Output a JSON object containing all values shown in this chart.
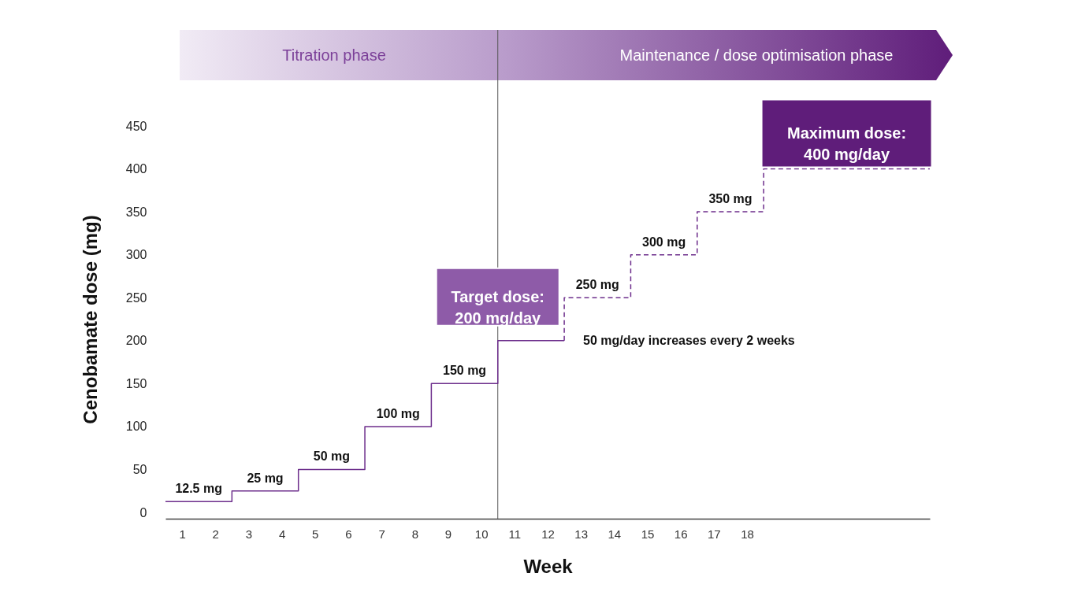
{
  "chart_data": {
    "type": "step",
    "xlabel": "Week",
    "ylabel": "Cenobamate dose (mg)",
    "xlim": [
      0.5,
      23.5
    ],
    "xticks": [
      1,
      2,
      3,
      4,
      5,
      6,
      7,
      8,
      9,
      10,
      11,
      12,
      13,
      14,
      15,
      16,
      17,
      18
    ],
    "ylim": [
      0,
      450
    ],
    "yticks": [
      0,
      50,
      100,
      150,
      200,
      250,
      300,
      350,
      400,
      450
    ],
    "grid": false,
    "marker": "none",
    "series": [
      {
        "color": "#6d2e8c",
        "line_style": "solid",
        "x": [
          0.5,
          2.5,
          4.5,
          6.5,
          8.5,
          10.5,
          12.5
        ],
        "values": [
          12.5,
          25,
          50,
          100,
          150,
          200,
          200
        ],
        "value_labels": [
          "12.5 mg",
          "25 mg",
          "50 mg",
          "100 mg",
          "150 mg",
          null,
          null
        ]
      },
      {
        "color": "#6d2e8c",
        "line_style": "dashed",
        "x": [
          12.5,
          12.5,
          14.5,
          16.5,
          18.5,
          23.5
        ],
        "values": [
          200,
          250,
          300,
          350,
          400,
          400
        ],
        "value_labels": [
          null,
          "250 mg",
          "300 mg",
          "350 mg",
          null,
          null
        ]
      }
    ],
    "ref_lines": [
      {
        "axis": "x",
        "value": 10.5,
        "color": "#555555"
      }
    ],
    "annotations": [
      "Titration phase",
      "Maintenance / dose optimisation phase",
      {
        "text": "Target dose:\n200 mg/day",
        "x": 10.5,
        "y": 200
      },
      {
        "text": "50 mg/day increases every 2 weeks",
        "x": 12.5,
        "y": 200
      },
      {
        "text": "Maximum dose:\n400 mg/day",
        "x": 21,
        "y": 400
      }
    ]
  }
}
